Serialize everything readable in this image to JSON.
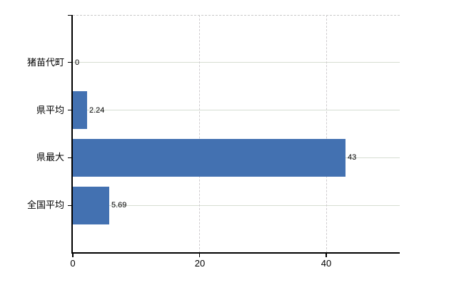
{
  "chart_data": {
    "type": "bar",
    "orientation": "horizontal",
    "title": "",
    "xlabel": "",
    "ylabel": "",
    "categories": [
      "猪苗代町",
      "県平均",
      "県最大",
      "全国平均"
    ],
    "values": [
      0,
      2.24,
      43,
      5.69
    ],
    "value_labels": [
      "0",
      "2.24",
      "43",
      "5.69"
    ],
    "x_tick_labels": [
      "0",
      "20",
      "40"
    ],
    "x_tick_values": [
      0,
      20,
      40
    ],
    "xlim": [
      0,
      51.6
    ],
    "grid": {
      "horizontal": true,
      "vertical": true
    },
    "legend": "none",
    "colors": {
      "bar": "#4371b1",
      "h_gridline": "#d6ddd2",
      "v_gridline": "#cfcccf",
      "top_border": "#c9c9c9",
      "axis": "#000000",
      "text": "#000000",
      "background": "#ffffff"
    }
  }
}
